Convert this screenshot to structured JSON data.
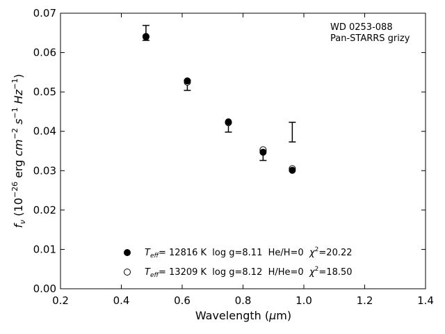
{
  "chart_data": {
    "type": "scatter",
    "title": "",
    "xlabel": "Wavelength (μm)",
    "ylabel": "f_ν (10^-26 erg cm^-2 s^-1 Hz^-1)",
    "xlim": [
      0.2,
      1.4
    ],
    "ylim": [
      0.0,
      0.07
    ],
    "xticks": [
      "0.2",
      "0.4",
      "0.6",
      "0.8",
      "1.0",
      "1.2",
      "1.4"
    ],
    "yticks": [
      "0.00",
      "0.01",
      "0.02",
      "0.03",
      "0.04",
      "0.05",
      "0.06",
      "0.07"
    ],
    "grid": false,
    "annotation": {
      "line1": "WD 0253-088",
      "line2": "Pan-STARRS grizy"
    },
    "observed": {
      "x": [
        0.481,
        0.617,
        0.752,
        0.866,
        0.962
      ],
      "y": [
        0.065,
        0.0517,
        0.041,
        0.0338,
        0.0398
      ],
      "yerr": [
        0.0019,
        0.0013,
        0.0012,
        0.0012,
        0.0025
      ]
    },
    "series": [
      {
        "marker": "filled",
        "x": [
          0.481,
          0.617,
          0.752,
          0.866,
          0.962
        ],
        "y": [
          0.064,
          0.0528,
          0.0424,
          0.0347,
          0.0301
        ],
        "legend": {
          "teff_label": "T",
          "teff_sub": "eff",
          "rest": "= 12816 K  log g=8.11  He/H=0  ",
          "chi": "χ",
          "sup": "2",
          "chi_val": "=20.22"
        }
      },
      {
        "marker": "open",
        "x": [
          0.481,
          0.617,
          0.752,
          0.866,
          0.962
        ],
        "y": [
          0.0641,
          0.0525,
          0.0422,
          0.0353,
          0.0305
        ],
        "legend": {
          "teff_label": "T",
          "teff_sub": "eff",
          "rest": "= 13209 K  log g=8.12  H/He=0  ",
          "chi": "χ",
          "sup": "2",
          "chi_val": "=18.50"
        }
      }
    ],
    "legend_position": "bottom-left"
  }
}
